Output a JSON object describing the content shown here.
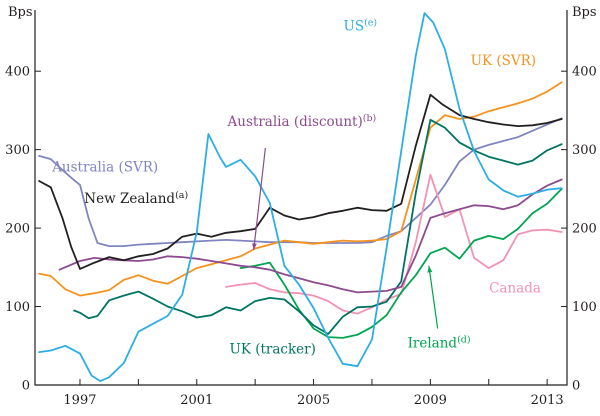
{
  "chart_data": {
    "type": "line",
    "title": "",
    "ylabel_left": "Bps",
    "ylabel_right": "Bps",
    "ylim": [
      0,
      478
    ],
    "yticks": [
      0,
      100,
      200,
      300,
      400
    ],
    "xlim": [
      1995.46,
      2013.68
    ],
    "xticks": [
      1997,
      2001,
      2005,
      2009,
      2013
    ],
    "xticks_minor": [
      1997,
      1999,
      2001,
      2003,
      2005,
      2007,
      2009,
      2011,
      2013
    ],
    "grid": false,
    "axis_color": "#231f20",
    "legend_position": "inline-labels",
    "series": [
      {
        "key": "australia-svr",
        "name": "Australia (SVR)",
        "color": "#8085c2",
        "points": [
          [
            1995.6,
            292
          ],
          [
            1996,
            288
          ],
          [
            1996.4,
            274
          ],
          [
            1996.8,
            261
          ],
          [
            1997,
            255
          ],
          [
            1997.3,
            212
          ],
          [
            1997.6,
            181
          ],
          [
            1998,
            177
          ],
          [
            1998.5,
            177
          ],
          [
            1999,
            179
          ],
          [
            1999.5,
            180
          ],
          [
            2000,
            181
          ],
          [
            2000.5,
            182
          ],
          [
            2001,
            183
          ],
          [
            2001.5,
            184
          ],
          [
            2002,
            185
          ],
          [
            2002.5,
            184
          ],
          [
            2003,
            183
          ],
          [
            2003.5,
            182
          ],
          [
            2004,
            182
          ],
          [
            2004.5,
            182
          ],
          [
            2005,
            181
          ],
          [
            2005.5,
            181
          ],
          [
            2006,
            181
          ],
          [
            2006.5,
            181
          ],
          [
            2007,
            182
          ],
          [
            2007.5,
            190
          ],
          [
            2008,
            196
          ],
          [
            2008.5,
            213
          ],
          [
            2009,
            230
          ],
          [
            2009.5,
            255
          ],
          [
            2010,
            285
          ],
          [
            2010.5,
            300
          ],
          [
            2011,
            306
          ],
          [
            2011.5,
            311
          ],
          [
            2012,
            316
          ],
          [
            2012.5,
            324
          ],
          [
            2013,
            332
          ],
          [
            2013.5,
            340
          ]
        ]
      },
      {
        "key": "uk-svr",
        "name": "UK (SVR)",
        "color": "#f6921e",
        "points": [
          [
            1995.6,
            142
          ],
          [
            1996,
            139
          ],
          [
            1996.5,
            122
          ],
          [
            1997,
            114
          ],
          [
            1997.5,
            117
          ],
          [
            1998,
            121
          ],
          [
            1998.5,
            134
          ],
          [
            1999,
            140
          ],
          [
            1999.5,
            133
          ],
          [
            2000,
            129
          ],
          [
            2000.5,
            139
          ],
          [
            2001,
            149
          ],
          [
            2001.5,
            154
          ],
          [
            2002,
            159
          ],
          [
            2002.5,
            164
          ],
          [
            2003,
            174
          ],
          [
            2003.5,
            179
          ],
          [
            2004,
            184
          ],
          [
            2004.5,
            182
          ],
          [
            2005,
            180
          ],
          [
            2005.5,
            182
          ],
          [
            2006,
            184
          ],
          [
            2006.5,
            183
          ],
          [
            2007,
            184
          ],
          [
            2007.5,
            186
          ],
          [
            2008,
            196
          ],
          [
            2008.5,
            262
          ],
          [
            2009,
            328
          ],
          [
            2009.5,
            344
          ],
          [
            2010,
            339
          ],
          [
            2010.5,
            342
          ],
          [
            2011,
            349
          ],
          [
            2011.5,
            354
          ],
          [
            2012,
            359
          ],
          [
            2012.5,
            365
          ],
          [
            2013,
            374
          ],
          [
            2013.5,
            386
          ]
        ]
      },
      {
        "key": "canada",
        "name": "Canada",
        "color": "#f392b4",
        "points": [
          [
            2002,
            125
          ],
          [
            2002.5,
            128
          ],
          [
            2003,
            130
          ],
          [
            2003.5,
            122
          ],
          [
            2004,
            118
          ],
          [
            2004.5,
            117
          ],
          [
            2005,
            114
          ],
          [
            2005.5,
            107
          ],
          [
            2006,
            95
          ],
          [
            2006.5,
            91
          ],
          [
            2007,
            99
          ],
          [
            2007.5,
            109
          ],
          [
            2008,
            116
          ],
          [
            2008.5,
            182
          ],
          [
            2009,
            268
          ],
          [
            2009.5,
            214
          ],
          [
            2010,
            224
          ],
          [
            2010.5,
            162
          ],
          [
            2011,
            149
          ],
          [
            2011.5,
            159
          ],
          [
            2012,
            192
          ],
          [
            2012.5,
            197
          ],
          [
            2013,
            198
          ],
          [
            2013.5,
            195
          ]
        ]
      },
      {
        "key": "ireland",
        "name": "Ireland",
        "color": "#00a550",
        "points": [
          [
            2002.5,
            149
          ],
          [
            2003,
            152
          ],
          [
            2003.5,
            156
          ],
          [
            2004,
            128
          ],
          [
            2004.5,
            96
          ],
          [
            2005,
            72
          ],
          [
            2005.5,
            61
          ],
          [
            2006,
            60
          ],
          [
            2006.5,
            64
          ],
          [
            2007,
            74
          ],
          [
            2007.5,
            89
          ],
          [
            2008,
            118
          ],
          [
            2008.5,
            140
          ],
          [
            2009,
            168
          ],
          [
            2009.5,
            175
          ],
          [
            2010,
            161
          ],
          [
            2010.5,
            184
          ],
          [
            2011,
            190
          ],
          [
            2011.5,
            186
          ],
          [
            2012,
            199
          ],
          [
            2012.5,
            219
          ],
          [
            2013,
            231
          ],
          [
            2013.5,
            250
          ]
        ]
      },
      {
        "key": "uk-tracker",
        "name": "UK (tracker)",
        "color": "#007462",
        "points": [
          [
            1996.8,
            95
          ],
          [
            1997,
            92
          ],
          [
            1997.3,
            85
          ],
          [
            1997.6,
            88
          ],
          [
            1998,
            108
          ],
          [
            1998.5,
            114
          ],
          [
            1999,
            119
          ],
          [
            1999.5,
            110
          ],
          [
            2000,
            100
          ],
          [
            2000.5,
            94
          ],
          [
            2001,
            86
          ],
          [
            2001.5,
            89
          ],
          [
            2002,
            99
          ],
          [
            2002.5,
            95
          ],
          [
            2003,
            107
          ],
          [
            2003.5,
            111
          ],
          [
            2004,
            109
          ],
          [
            2004.5,
            94
          ],
          [
            2005,
            76
          ],
          [
            2005.5,
            65
          ],
          [
            2006,
            87
          ],
          [
            2006.5,
            99
          ],
          [
            2007,
            100
          ],
          [
            2007.5,
            106
          ],
          [
            2008,
            132
          ],
          [
            2008.5,
            245
          ],
          [
            2009,
            338
          ],
          [
            2009.5,
            328
          ],
          [
            2010,
            309
          ],
          [
            2010.5,
            299
          ],
          [
            2011,
            291
          ],
          [
            2011.5,
            286
          ],
          [
            2012,
            281
          ],
          [
            2012.5,
            286
          ],
          [
            2013,
            299
          ],
          [
            2013.5,
            307
          ]
        ]
      },
      {
        "key": "australia-discount",
        "name": "Australia (discount)",
        "color": "#8e4a8f",
        "points": [
          [
            1996.3,
            147
          ],
          [
            1997,
            158
          ],
          [
            1997.5,
            162
          ],
          [
            1998,
            160
          ],
          [
            1998.5,
            159
          ],
          [
            1999,
            158
          ],
          [
            1999.5,
            160
          ],
          [
            2000,
            164
          ],
          [
            2000.5,
            163
          ],
          [
            2001,
            161
          ],
          [
            2001.5,
            158
          ],
          [
            2002,
            155
          ],
          [
            2002.5,
            152
          ],
          [
            2003,
            150
          ],
          [
            2003.5,
            147
          ],
          [
            2004,
            141
          ],
          [
            2004.5,
            136
          ],
          [
            2005,
            131
          ],
          [
            2005.5,
            127
          ],
          [
            2006,
            122
          ],
          [
            2006.5,
            118
          ],
          [
            2007,
            119
          ],
          [
            2007.5,
            120
          ],
          [
            2008,
            125
          ],
          [
            2008.5,
            165
          ],
          [
            2009,
            213
          ],
          [
            2009.5,
            219
          ],
          [
            2010,
            224
          ],
          [
            2010.5,
            229
          ],
          [
            2011,
            228
          ],
          [
            2011.5,
            224
          ],
          [
            2012,
            229
          ],
          [
            2012.5,
            243
          ],
          [
            2013,
            254
          ],
          [
            2013.5,
            262
          ]
        ]
      },
      {
        "key": "new-zealand",
        "name": "New Zealand",
        "color": "#231f20",
        "points": [
          [
            1995.6,
            260
          ],
          [
            1996,
            252
          ],
          [
            1996.4,
            213
          ],
          [
            1996.7,
            176
          ],
          [
            1997,
            148
          ],
          [
            1997.5,
            156
          ],
          [
            1998,
            163
          ],
          [
            1998.5,
            159
          ],
          [
            1999,
            164
          ],
          [
            1999.5,
            167
          ],
          [
            2000,
            174
          ],
          [
            2000.5,
            189
          ],
          [
            2001,
            193
          ],
          [
            2001.5,
            189
          ],
          [
            2002,
            194
          ],
          [
            2002.5,
            196
          ],
          [
            2003,
            199
          ],
          [
            2003.5,
            226
          ],
          [
            2004,
            216
          ],
          [
            2004.5,
            211
          ],
          [
            2005,
            214
          ],
          [
            2005.5,
            219
          ],
          [
            2006,
            222
          ],
          [
            2006.5,
            226
          ],
          [
            2007,
            223
          ],
          [
            2007.5,
            222
          ],
          [
            2008,
            231
          ],
          [
            2008.5,
            305
          ],
          [
            2009,
            370
          ],
          [
            2009.4,
            358
          ],
          [
            2010,
            344
          ],
          [
            2010.5,
            339
          ],
          [
            2011,
            335
          ],
          [
            2011.5,
            332
          ],
          [
            2012,
            330
          ],
          [
            2012.5,
            331
          ],
          [
            2013,
            334
          ],
          [
            2013.5,
            339
          ]
        ]
      },
      {
        "key": "us",
        "name": "US",
        "color": "#2caee5",
        "points": [
          [
            1995.6,
            42
          ],
          [
            1996,
            44
          ],
          [
            1996.5,
            50
          ],
          [
            1997,
            40
          ],
          [
            1997.4,
            12
          ],
          [
            1997.7,
            5
          ],
          [
            1998,
            10
          ],
          [
            1998.5,
            28
          ],
          [
            1999,
            68
          ],
          [
            1999.5,
            78
          ],
          [
            2000,
            88
          ],
          [
            2000.5,
            115
          ],
          [
            2001,
            195
          ],
          [
            2001.4,
            320
          ],
          [
            2001.8,
            290
          ],
          [
            2002,
            278
          ],
          [
            2002.5,
            287
          ],
          [
            2003,
            266
          ],
          [
            2003.5,
            232
          ],
          [
            2004,
            152
          ],
          [
            2004.5,
            128
          ],
          [
            2005,
            98
          ],
          [
            2005.5,
            60
          ],
          [
            2006,
            27
          ],
          [
            2006.5,
            24
          ],
          [
            2007,
            58
          ],
          [
            2007.5,
            175
          ],
          [
            2008,
            298
          ],
          [
            2008.5,
            420
          ],
          [
            2008.8,
            474
          ],
          [
            2009.1,
            462
          ],
          [
            2009.5,
            428
          ],
          [
            2010,
            352
          ],
          [
            2010.5,
            298
          ],
          [
            2011,
            262
          ],
          [
            2011.5,
            248
          ],
          [
            2012,
            240
          ],
          [
            2012.5,
            244
          ],
          [
            2013,
            249
          ],
          [
            2013.5,
            251
          ]
        ]
      }
    ],
    "annotations": [
      {
        "key": "australia-svr",
        "text": "Australia (SVR)",
        "sup": "",
        "color": "#8085c2",
        "x": 1996.05,
        "y": 272,
        "anchor": "start"
      },
      {
        "key": "new-zealand",
        "text": "New Zealand",
        "sup": "(a)",
        "color": "#231f20",
        "x": 1997.15,
        "y": 232,
        "anchor": "start"
      },
      {
        "key": "australia-discount",
        "text": "Australia (discount)",
        "sup": "(b)",
        "color": "#8e4a8f",
        "x": 2004.6,
        "y": 330,
        "anchor": "middle",
        "arrow_from": [
          2003.35,
          302
        ],
        "arrow_to": [
          2002.95,
          172
        ]
      },
      {
        "key": "us",
        "text": "US",
        "sup": "(e)",
        "color": "#2caee5",
        "x": 2006.6,
        "y": 452,
        "anchor": "middle"
      },
      {
        "key": "uk-svr",
        "text": "UK (SVR)",
        "sup": "",
        "color": "#f6921e",
        "x": 2011.5,
        "y": 408,
        "anchor": "middle"
      },
      {
        "key": "uk-tracker",
        "text": "UK (tracker)",
        "sup": "",
        "color": "#007462",
        "x": 2003.6,
        "y": 40,
        "anchor": "middle"
      },
      {
        "key": "ireland",
        "text": "Ireland",
        "sup": "(d)",
        "color": "#00a550",
        "x": 2009.3,
        "y": 48,
        "anchor": "middle",
        "arrow_from": [
          2009.25,
          72
        ],
        "arrow_to": [
          2008.95,
          152
        ]
      },
      {
        "key": "canada",
        "text": "Canada",
        "sup": "",
        "color": "#f392b4",
        "x": 2011.9,
        "y": 118,
        "anchor": "middle"
      }
    ]
  }
}
